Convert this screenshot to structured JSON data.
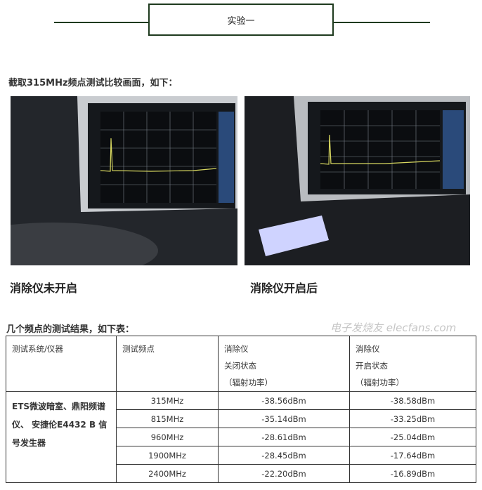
{
  "section_title": "实验一",
  "intro": "截取315MHz频点测试比较画面，如下：",
  "photos": [
    {
      "caption": "消除仪未开启"
    },
    {
      "caption": "消除仪开启后"
    }
  ],
  "table_intro": "几个频点的测试结果，如下表：",
  "table": {
    "headers": [
      [
        "测试系统/仪器"
      ],
      [
        "测试频点"
      ],
      [
        "消除仪",
        "关闭状态",
        "（辐射功率）"
      ],
      [
        "消除仪",
        "开启状态",
        "（辐射功率）"
      ]
    ],
    "system": "ETS微波暗室、鼎阳频谱仪、 安捷伦E4432 B 信号发生器",
    "rows": [
      {
        "freq": "315MHz",
        "off": "-38.56dBm",
        "on": "-38.58dBm"
      },
      {
        "freq": "815MHz",
        "off": "-35.14dBm",
        "on": "-33.25dBm"
      },
      {
        "freq": "960MHz",
        "off": "-28.61dBm",
        "on": "-25.04dBm"
      },
      {
        "freq": "1900MHz",
        "off": "-28.45dBm",
        "on": "-17.64dBm"
      },
      {
        "freq": "2400MHz",
        "off": "-22.20dBm",
        "on": "-16.89dBm"
      }
    ]
  },
  "watermark": "电子发烧友 elecfans.com"
}
